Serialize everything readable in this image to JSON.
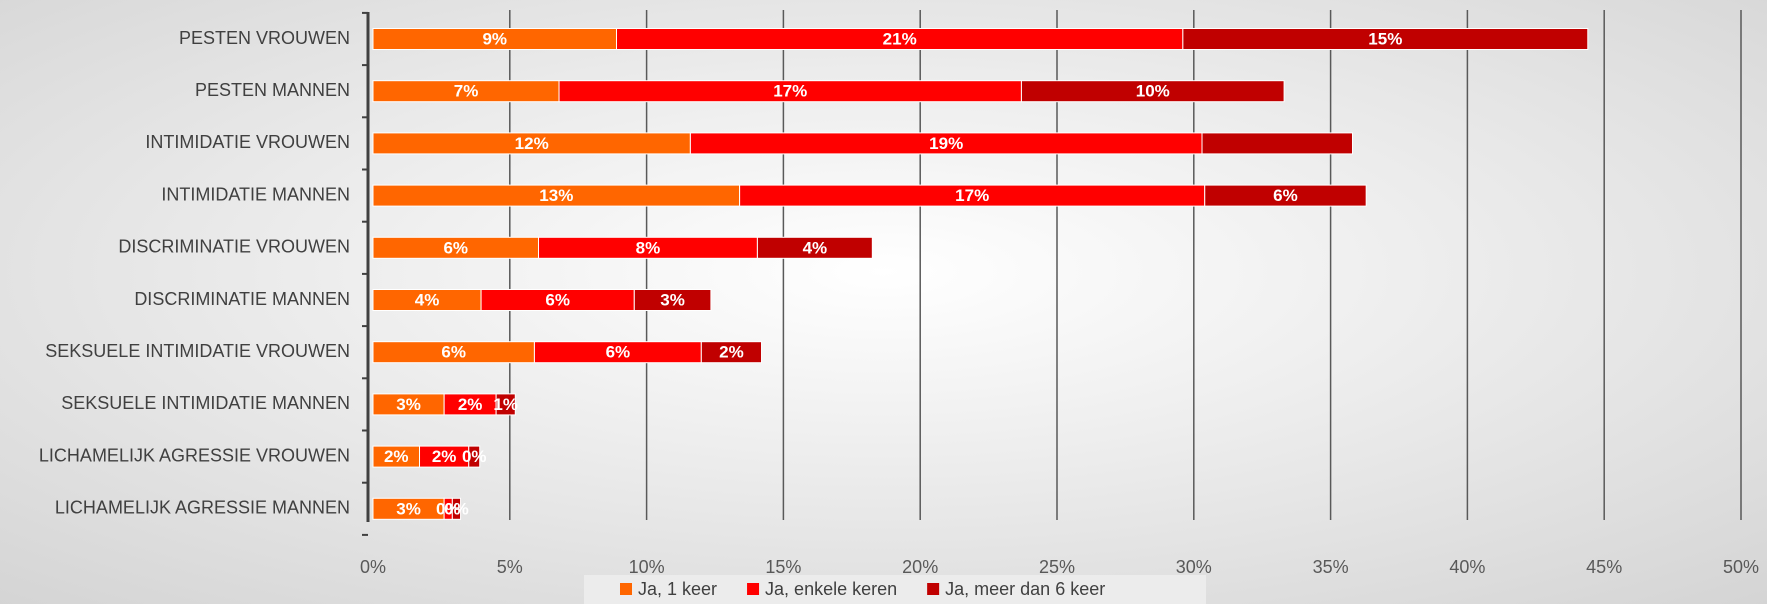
{
  "chart_data": {
    "type": "stacked_barh",
    "categories": [
      "PESTEN VROUWEN",
      "PESTEN MANNEN",
      "INTIMIDATIE VROUWEN",
      "INTIMIDATIE MANNEN",
      "DISCRIMINATIE VROUWEN",
      "DISCRIMINATIE MANNEN",
      "SEKSUELE INTIMIDATIE VROUWEN",
      "SEKSUELE INTIMIDATIE MANNEN",
      "LICHAMELIJK AGRESSIE VROUWEN",
      "LICHAMELIJK AGRESSIE MANNEN"
    ],
    "series": [
      {
        "name": "Ja, 1 keer",
        "color": "#ff6600",
        "values": [
          8.9,
          6.8,
          11.6,
          13.4,
          6.05,
          3.95,
          5.9,
          2.6,
          1.7,
          2.6
        ],
        "value_labels": [
          "9%",
          "7%",
          "12%",
          "13%",
          "6%",
          "4%",
          "6%",
          "3%",
          "2%",
          "3%"
        ]
      },
      {
        "name": "Ja, enkele keren",
        "color": "#ff0000",
        "values": [
          20.7,
          16.9,
          18.7,
          17.0,
          8.0,
          5.6,
          6.1,
          1.9,
          1.8,
          0.3
        ],
        "value_labels": [
          "21%",
          "17%",
          "19%",
          "17%",
          "8%",
          "6%",
          "6%",
          "2%",
          "2%",
          "0%"
        ]
      },
      {
        "name": "Ja, meer dan 6 keer",
        "color": "#c00000",
        "values": [
          14.8,
          9.6,
          5.5,
          5.9,
          4.2,
          2.8,
          2.2,
          0.7,
          0.4,
          0.3
        ],
        "value_labels": [
          "15%",
          "10%",
          null,
          "6%",
          "4%",
          "3%",
          "2%",
          "1%",
          "0%",
          "0%"
        ]
      }
    ],
    "xlim": [
      0,
      50
    ],
    "xticks": [
      {
        "value": 0,
        "label": "0%"
      },
      {
        "value": 5,
        "label": "5%"
      },
      {
        "value": 10,
        "label": "10%"
      },
      {
        "value": 15,
        "label": "15%"
      },
      {
        "value": 20,
        "label": "20%"
      },
      {
        "value": 25,
        "label": "25%"
      },
      {
        "value": 30,
        "label": "30%"
      },
      {
        "value": 35,
        "label": "35%"
      },
      {
        "value": 40,
        "label": "40%"
      },
      {
        "value": 45,
        "label": "45%"
      },
      {
        "value": 50,
        "label": "50%"
      }
    ],
    "grid": true,
    "legend": "bottom"
  }
}
